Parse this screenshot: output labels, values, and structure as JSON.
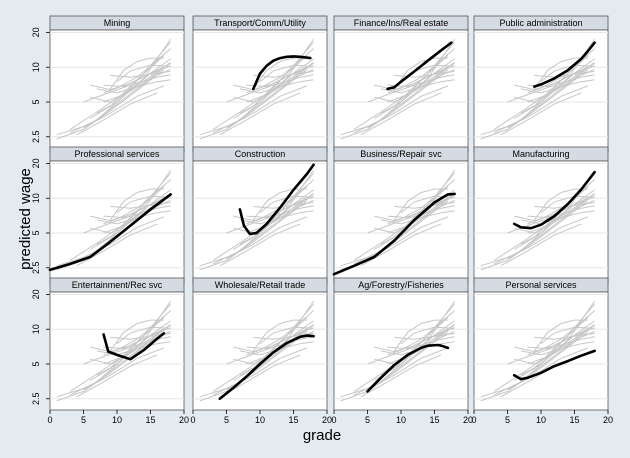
{
  "chart_data": {
    "type": "line",
    "facet_layout": {
      "rows": 3,
      "cols": 4
    },
    "xlabel": "grade",
    "ylabel": "predicted wage",
    "xlim": [
      0,
      20
    ],
    "ylim_log": [
      2,
      21
    ],
    "y_scale": "log",
    "x_ticks": [
      0,
      5,
      10,
      15,
      20
    ],
    "y_ticks": [
      2.5,
      5,
      10,
      20
    ],
    "background_series": [
      [
        [
          1,
          2.4
        ],
        [
          5,
          2.9
        ],
        [
          9,
          4.2
        ],
        [
          13,
          6.3
        ],
        [
          17,
          9.5
        ]
      ],
      [
        [
          1,
          2.6
        ],
        [
          6,
          3.2
        ],
        [
          10,
          4.8
        ],
        [
          14,
          7.2
        ],
        [
          17,
          9.9
        ]
      ],
      [
        [
          3,
          2.7
        ],
        [
          7,
          3.5
        ],
        [
          11,
          5.6
        ],
        [
          15,
          8.9
        ],
        [
          18,
          11.8
        ]
      ],
      [
        [
          5,
          3.0
        ],
        [
          9,
          4.0
        ],
        [
          13,
          5.6
        ],
        [
          17,
          6.9
        ]
      ],
      [
        [
          4,
          2.6
        ],
        [
          8,
          3.5
        ],
        [
          12,
          4.8
        ],
        [
          16,
          6.0
        ]
      ],
      [
        [
          6,
          3.6
        ],
        [
          9,
          4.6
        ],
        [
          13,
          7.8
        ],
        [
          17,
          12.6
        ]
      ],
      [
        [
          7,
          4.0
        ],
        [
          10,
          5.0
        ],
        [
          14,
          8.8
        ],
        [
          18,
          16.5
        ]
      ],
      [
        [
          8,
          5.0
        ],
        [
          11,
          5.8
        ],
        [
          14,
          8.0
        ],
        [
          18,
          17.5
        ]
      ],
      [
        [
          8,
          6.0
        ],
        [
          10,
          6.6
        ],
        [
          13,
          8.2
        ],
        [
          16,
          11.5
        ],
        [
          18,
          14.5
        ]
      ],
      [
        [
          8,
          7.0
        ],
        [
          11,
          6.8
        ],
        [
          14,
          8.3
        ],
        [
          18,
          10.3
        ]
      ],
      [
        [
          9,
          6.5
        ],
        [
          11,
          9.4
        ],
        [
          13,
          11.2
        ],
        [
          15,
          12.0
        ],
        [
          17,
          12.0
        ]
      ],
      [
        [
          10,
          7.5
        ],
        [
          12,
          9.3
        ],
        [
          15,
          10.4
        ],
        [
          18,
          10.2
        ]
      ],
      [
        [
          9,
          8.5
        ],
        [
          12,
          8.2
        ],
        [
          15,
          8.7
        ],
        [
          18,
          9.2
        ]
      ],
      [
        [
          6,
          5.5
        ],
        [
          9,
          5.0
        ],
        [
          12,
          6.2
        ],
        [
          15,
          8.0
        ],
        [
          18,
          9.6
        ]
      ],
      [
        [
          7,
          6.5
        ],
        [
          10,
          6.0
        ],
        [
          13,
          6.8
        ],
        [
          16,
          7.5
        ],
        [
          18,
          7.8
        ]
      ],
      [
        [
          6,
          7.0
        ],
        [
          9,
          6.4
        ],
        [
          12,
          7.2
        ],
        [
          15,
          8.8
        ],
        [
          18,
          10.8
        ]
      ],
      [
        [
          5,
          5.0
        ],
        [
          8,
          5.8
        ],
        [
          12,
          7.0
        ],
        [
          16,
          8.2
        ],
        [
          18,
          8.6
        ]
      ],
      [
        [
          3,
          2.9
        ],
        [
          7,
          4.1
        ],
        [
          11,
          5.9
        ],
        [
          15,
          8.3
        ],
        [
          18,
          11.0
        ]
      ]
    ],
    "panels": [
      {
        "title": "Mining",
        "points": []
      },
      {
        "title": "Transport/Comm/Utility",
        "points": [
          [
            9,
            6.5
          ],
          [
            10,
            8.8
          ],
          [
            11,
            10.3
          ],
          [
            12,
            11.4
          ],
          [
            13,
            12.0
          ],
          [
            14,
            12.3
          ],
          [
            15,
            12.4
          ],
          [
            16,
            12.3
          ],
          [
            17.5,
            12.0
          ]
        ]
      },
      {
        "title": "Finance/Ins/Real estate",
        "points": [
          [
            8,
            6.5
          ],
          [
            9,
            6.7
          ],
          [
            10,
            7.5
          ],
          [
            12,
            9.2
          ],
          [
            14,
            11.4
          ],
          [
            16,
            14.0
          ],
          [
            17.5,
            16.3
          ]
        ]
      },
      {
        "title": "Public administration",
        "points": [
          [
            9,
            6.8
          ],
          [
            10,
            7.1
          ],
          [
            12,
            8.0
          ],
          [
            14,
            9.4
          ],
          [
            16,
            11.8
          ],
          [
            17,
            13.8
          ],
          [
            18,
            16.3
          ]
        ]
      },
      {
        "title": "Professional services",
        "points": [
          [
            0,
            2.4
          ],
          [
            3,
            2.7
          ],
          [
            6,
            3.1
          ],
          [
            9,
            4.2
          ],
          [
            12,
            5.8
          ],
          [
            15,
            8.0
          ],
          [
            18,
            10.8
          ]
        ]
      },
      {
        "title": "Construction",
        "points": [
          [
            7,
            8.0
          ],
          [
            7.6,
            5.8
          ],
          [
            8.5,
            4.9
          ],
          [
            9.5,
            5.0
          ],
          [
            11,
            6.0
          ],
          [
            13,
            8.3
          ],
          [
            15,
            11.8
          ],
          [
            17,
            16.2
          ],
          [
            18,
            19.5
          ]
        ]
      },
      {
        "title": "Business/Repair svc",
        "points": [
          [
            0,
            2.2
          ],
          [
            3,
            2.6
          ],
          [
            6,
            3.1
          ],
          [
            9,
            4.3
          ],
          [
            12,
            6.5
          ],
          [
            15,
            9.2
          ],
          [
            17,
            10.8
          ],
          [
            18,
            10.9
          ]
        ]
      },
      {
        "title": "Manufacturing",
        "points": [
          [
            6,
            6.0
          ],
          [
            7,
            5.6
          ],
          [
            8.5,
            5.5
          ],
          [
            10,
            5.9
          ],
          [
            12,
            7.0
          ],
          [
            14,
            8.9
          ],
          [
            16,
            11.9
          ],
          [
            18,
            16.8
          ]
        ]
      },
      {
        "title": "Entertainment/Rec svc",
        "points": [
          [
            8,
            9.0
          ],
          [
            8.7,
            6.4
          ],
          [
            10,
            6.0
          ],
          [
            12,
            5.5
          ],
          [
            14,
            6.6
          ],
          [
            16,
            8.3
          ],
          [
            17,
            9.2
          ]
        ]
      },
      {
        "title": "Wholesale/Retail trade",
        "points": [
          [
            4,
            2.5
          ],
          [
            6,
            3.1
          ],
          [
            8,
            3.9
          ],
          [
            10,
            5.0
          ],
          [
            12,
            6.3
          ],
          [
            14,
            7.6
          ],
          [
            16,
            8.6
          ],
          [
            17,
            8.8
          ],
          [
            18,
            8.7
          ]
        ]
      },
      {
        "title": "Ag/Forestry/Fisheries",
        "points": [
          [
            5,
            2.9
          ],
          [
            7,
            3.8
          ],
          [
            9,
            4.9
          ],
          [
            11,
            6.0
          ],
          [
            13,
            6.9
          ],
          [
            14,
            7.2
          ],
          [
            15.5,
            7.3
          ],
          [
            16,
            7.2
          ],
          [
            17,
            6.9
          ]
        ]
      },
      {
        "title": "Personal services",
        "points": [
          [
            6,
            4.0
          ],
          [
            7,
            3.7
          ],
          [
            8,
            3.8
          ],
          [
            10,
            4.2
          ],
          [
            12,
            4.8
          ],
          [
            14,
            5.3
          ],
          [
            16,
            5.9
          ],
          [
            18,
            6.5
          ]
        ]
      }
    ]
  }
}
